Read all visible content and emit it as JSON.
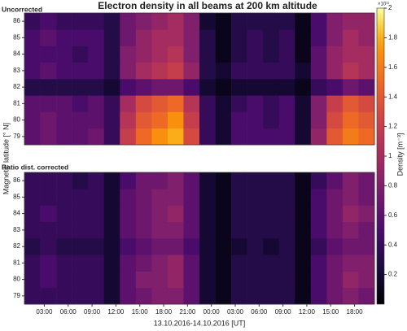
{
  "chart_data": [
    {
      "type": "heatmap",
      "title": "Electron density in all beams at 200 km altitude",
      "subtitle": "Uncorrected",
      "ylabel": "Magnetic latitude [° N]",
      "x": [
        1.5,
        3.5,
        5.5,
        7.5,
        9.5,
        11.5,
        13.5,
        15.5,
        17.5,
        19.5,
        21.5,
        23.5,
        25.5,
        27.5,
        29.5,
        31.5,
        33.5,
        35.5,
        37.5,
        39.5,
        41.5,
        43.5
      ],
      "y": [
        79,
        80,
        81,
        82,
        83,
        84,
        85,
        86
      ],
      "xlim": [
        0.5,
        44.5
      ],
      "ylim": [
        78.5,
        86.5
      ],
      "yticks": [
        79,
        80,
        81,
        82,
        83,
        84,
        85,
        86
      ],
      "z": [
        [
          0.6,
          0.7,
          0.6,
          0.6,
          0.7,
          0.4,
          1.2,
          1.5,
          1.7,
          1.8,
          1.3,
          0.4,
          0.2,
          0.5,
          0.5,
          0.5,
          0.5,
          0.2,
          0.9,
          1.4,
          1.6,
          1.5
        ],
        [
          0.6,
          0.7,
          0.6,
          0.6,
          0.6,
          0.4,
          1.1,
          1.4,
          1.5,
          1.7,
          1.2,
          0.4,
          0.2,
          0.5,
          0.5,
          0.4,
          0.5,
          0.2,
          0.8,
          1.3,
          1.5,
          1.4
        ],
        [
          0.6,
          0.6,
          0.6,
          0.5,
          0.6,
          0.4,
          1.0,
          1.3,
          1.4,
          1.5,
          1.1,
          0.4,
          0.2,
          0.4,
          0.5,
          0.4,
          0.5,
          0.2,
          0.8,
          1.2,
          1.4,
          1.3
        ],
        [
          0.3,
          0.3,
          0.3,
          0.3,
          0.3,
          0.2,
          0.5,
          0.6,
          0.7,
          0.7,
          0.5,
          0.2,
          0.1,
          0.2,
          0.2,
          0.2,
          0.2,
          0.1,
          0.4,
          0.5,
          0.7,
          0.6
        ],
        [
          0.5,
          0.6,
          0.5,
          0.5,
          0.5,
          0.3,
          0.8,
          1.0,
          1.1,
          1.2,
          0.9,
          0.3,
          0.2,
          0.4,
          0.4,
          0.4,
          0.4,
          0.2,
          0.6,
          0.9,
          1.1,
          1.0
        ],
        [
          0.5,
          0.5,
          0.5,
          0.4,
          0.5,
          0.3,
          0.8,
          0.9,
          1.0,
          1.1,
          0.8,
          0.3,
          0.1,
          0.3,
          0.4,
          0.3,
          0.4,
          0.1,
          0.6,
          0.9,
          1.0,
          1.0
        ],
        [
          0.5,
          0.6,
          0.5,
          0.5,
          0.5,
          0.3,
          0.7,
          0.9,
          1.0,
          1.0,
          0.8,
          0.3,
          0.1,
          0.3,
          0.4,
          0.3,
          0.4,
          0.1,
          0.5,
          0.8,
          1.0,
          0.9
        ],
        [
          0.4,
          0.5,
          0.4,
          0.4,
          0.4,
          0.3,
          0.7,
          0.8,
          0.9,
          1.0,
          0.8,
          0.2,
          0.1,
          0.3,
          0.3,
          0.3,
          0.3,
          0.1,
          0.5,
          0.8,
          0.9,
          0.9
        ]
      ],
      "colormap": "inferno",
      "clim": [
        0,
        2
      ],
      "colorbar": {
        "label": "Density [m⁻³]",
        "scale_label": "×10¹¹",
        "ticks": [
          0.2,
          0.4,
          0.6,
          0.8,
          1,
          1.2,
          1.4,
          1.6,
          1.8,
          2
        ]
      }
    },
    {
      "type": "heatmap",
      "subtitle": "Ratio dist. corrected",
      "xlabel": "13.10.2016-14.10.2016 [UT]",
      "x": [
        1.5,
        3.5,
        5.5,
        7.5,
        9.5,
        11.5,
        13.5,
        15.5,
        17.5,
        19.5,
        21.5,
        23.5,
        25.5,
        27.5,
        29.5,
        31.5,
        33.5,
        35.5,
        37.5,
        39.5,
        41.5,
        43.5
      ],
      "y": [
        79,
        80,
        81,
        82,
        83,
        84,
        85,
        86
      ],
      "xlim": [
        0.5,
        44.5
      ],
      "ylim": [
        78.5,
        86.5
      ],
      "yticks": [
        79,
        80,
        81,
        82,
        83,
        84,
        85,
        86
      ],
      "xticks": [
        {
          "value": 3,
          "label": "03:00"
        },
        {
          "value": 6,
          "label": "06:00"
        },
        {
          "value": 9,
          "label": "09:00"
        },
        {
          "value": 12,
          "label": "12:00"
        },
        {
          "value": 15,
          "label": "15:00"
        },
        {
          "value": 18,
          "label": "18:00"
        },
        {
          "value": 21,
          "label": "21:00"
        },
        {
          "value": 24,
          "label": "00:00"
        },
        {
          "value": 27,
          "label": "03:00"
        },
        {
          "value": 30,
          "label": "06:00"
        },
        {
          "value": 33,
          "label": "09:00"
        },
        {
          "value": 36,
          "label": "12:00"
        },
        {
          "value": 39,
          "label": "15:00"
        },
        {
          "value": 42,
          "label": "18:00"
        }
      ],
      "z": [
        [
          0.4,
          0.4,
          0.4,
          0.4,
          0.4,
          0.2,
          0.6,
          0.7,
          0.8,
          0.8,
          0.6,
          0.2,
          0.1,
          0.3,
          0.3,
          0.3,
          0.3,
          0.1,
          0.5,
          0.7,
          0.8,
          0.7
        ],
        [
          0.4,
          0.5,
          0.4,
          0.4,
          0.4,
          0.2,
          0.6,
          0.8,
          0.8,
          0.9,
          0.6,
          0.2,
          0.1,
          0.3,
          0.3,
          0.3,
          0.3,
          0.1,
          0.5,
          0.7,
          0.9,
          0.8
        ],
        [
          0.4,
          0.5,
          0.4,
          0.4,
          0.4,
          0.2,
          0.6,
          0.7,
          0.8,
          0.9,
          0.6,
          0.2,
          0.1,
          0.3,
          0.3,
          0.3,
          0.3,
          0.1,
          0.5,
          0.7,
          0.8,
          0.8
        ],
        [
          0.3,
          0.4,
          0.3,
          0.3,
          0.3,
          0.2,
          0.5,
          0.6,
          0.7,
          0.7,
          0.5,
          0.2,
          0.1,
          0.2,
          0.3,
          0.2,
          0.3,
          0.1,
          0.4,
          0.6,
          0.7,
          0.7
        ],
        [
          0.4,
          0.4,
          0.4,
          0.4,
          0.4,
          0.2,
          0.6,
          0.7,
          0.8,
          0.8,
          0.6,
          0.2,
          0.1,
          0.3,
          0.3,
          0.3,
          0.3,
          0.1,
          0.5,
          0.7,
          0.8,
          0.7
        ],
        [
          0.4,
          0.5,
          0.4,
          0.4,
          0.4,
          0.2,
          0.6,
          0.7,
          0.8,
          0.9,
          0.6,
          0.2,
          0.1,
          0.3,
          0.3,
          0.3,
          0.3,
          0.1,
          0.5,
          0.7,
          0.9,
          0.8
        ],
        [
          0.4,
          0.4,
          0.4,
          0.4,
          0.4,
          0.2,
          0.6,
          0.7,
          0.8,
          0.8,
          0.6,
          0.2,
          0.1,
          0.3,
          0.3,
          0.3,
          0.3,
          0.1,
          0.5,
          0.7,
          0.8,
          0.7
        ],
        [
          0.4,
          0.4,
          0.4,
          0.3,
          0.4,
          0.2,
          0.5,
          0.7,
          0.7,
          0.8,
          0.6,
          0.2,
          0.1,
          0.3,
          0.3,
          0.3,
          0.3,
          0.1,
          0.4,
          0.6,
          0.8,
          0.7
        ]
      ],
      "colormap": "inferno",
      "clim": [
        0,
        2
      ]
    }
  ]
}
